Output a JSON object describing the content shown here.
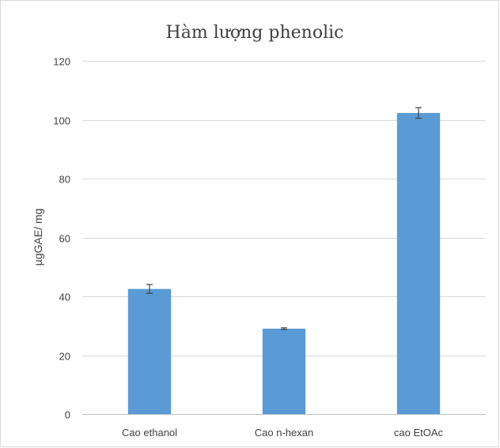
{
  "chart_data": {
    "type": "bar",
    "title": "Hàm lượng phenolic",
    "xlabel": "",
    "ylabel": "µgGAE/ mg",
    "categories": [
      "Cao ethanol",
      "Cao n-hexan",
      "cao EtOAc"
    ],
    "values": [
      42.5,
      29.0,
      102.3
    ],
    "errors": [
      1.5,
      0.3,
      1.8
    ],
    "ylim": [
      0,
      120
    ],
    "yticks": [
      0,
      20,
      40,
      60,
      80,
      100,
      120
    ],
    "grid": true,
    "legend": "none",
    "bar_color": "#5b9bd5"
  }
}
